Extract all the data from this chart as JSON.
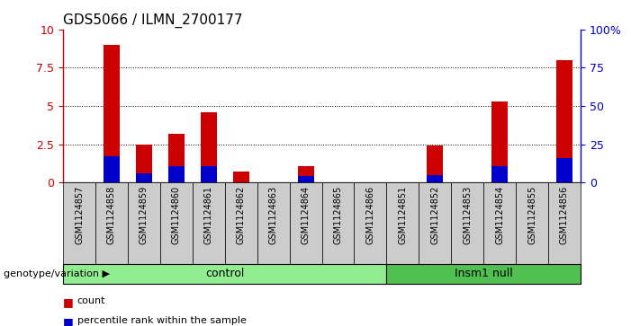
{
  "title": "GDS5066 / ILMN_2700177",
  "samples": [
    "GSM1124857",
    "GSM1124858",
    "GSM1124859",
    "GSM1124860",
    "GSM1124861",
    "GSM1124862",
    "GSM1124863",
    "GSM1124864",
    "GSM1124865",
    "GSM1124866",
    "GSM1124851",
    "GSM1124852",
    "GSM1124853",
    "GSM1124854",
    "GSM1124855",
    "GSM1124856"
  ],
  "counts": [
    0,
    9.0,
    2.5,
    3.2,
    4.6,
    0.7,
    0,
    1.1,
    0,
    0,
    0,
    2.4,
    0,
    5.3,
    0,
    8.0
  ],
  "percentile": [
    0,
    1.7,
    0.6,
    1.1,
    1.1,
    0,
    0,
    0.4,
    0,
    0,
    0,
    0.5,
    0,
    1.1,
    0,
    1.6
  ],
  "groups": [
    {
      "label": "control",
      "start": 0,
      "end": 10,
      "color": "#90EE90"
    },
    {
      "label": "Insm1 null",
      "start": 10,
      "end": 16,
      "color": "#50C050"
    }
  ],
  "ylim_left": [
    0,
    10
  ],
  "ylim_right": [
    0,
    100
  ],
  "yticks_left": [
    0,
    2.5,
    5.0,
    7.5,
    10
  ],
  "ytick_labels_left": [
    "0",
    "2.5",
    "5",
    "7.5",
    "10"
  ],
  "yticks_right": [
    0,
    25,
    50,
    75,
    100
  ],
  "ytick_labels_right": [
    "0",
    "25",
    "50",
    "75",
    "100%"
  ],
  "bar_color": "#CC0000",
  "blue_color": "#0000CC",
  "bar_width": 0.5,
  "plot_bg_color": "#ffffff",
  "tick_area_bg": "#cccccc",
  "label_genotype": "genotype/variation",
  "legend_count": "count",
  "legend_percentile": "percentile rank within the sample",
  "gridlines": [
    2.5,
    5.0,
    7.5
  ]
}
